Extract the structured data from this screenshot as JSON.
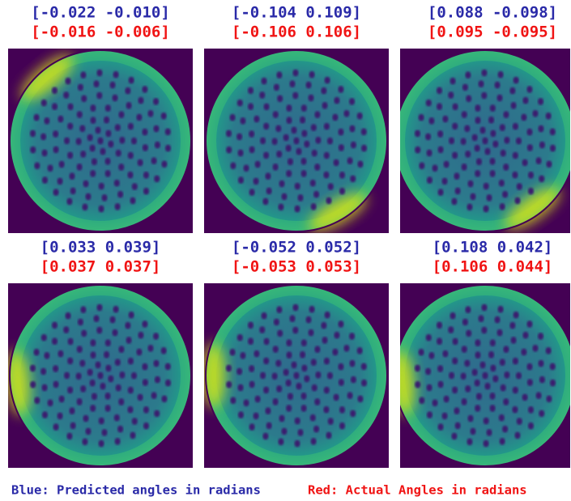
{
  "panels": [
    {
      "predicted": "[-0.022 -0.010]",
      "actual": "[-0.016 -0.006]"
    },
    {
      "predicted": "[-0.104 0.109]",
      "actual": "[-0.106 0.106]"
    },
    {
      "predicted": "[0.088 -0.098]",
      "actual": "[0.095 -0.095]"
    },
    {
      "predicted": "[0.033 0.039]",
      "actual": "[0.037 0.037]"
    },
    {
      "predicted": "[-0.052 0.052]",
      "actual": "[-0.053 0.053]"
    },
    {
      "predicted": "[0.108 0.042]",
      "actual": "[0.106 0.044]"
    }
  ],
  "legend": {
    "predicted": "Blue: Predicted angles in radians",
    "actual": "Red: Actual Angles in radians"
  }
}
